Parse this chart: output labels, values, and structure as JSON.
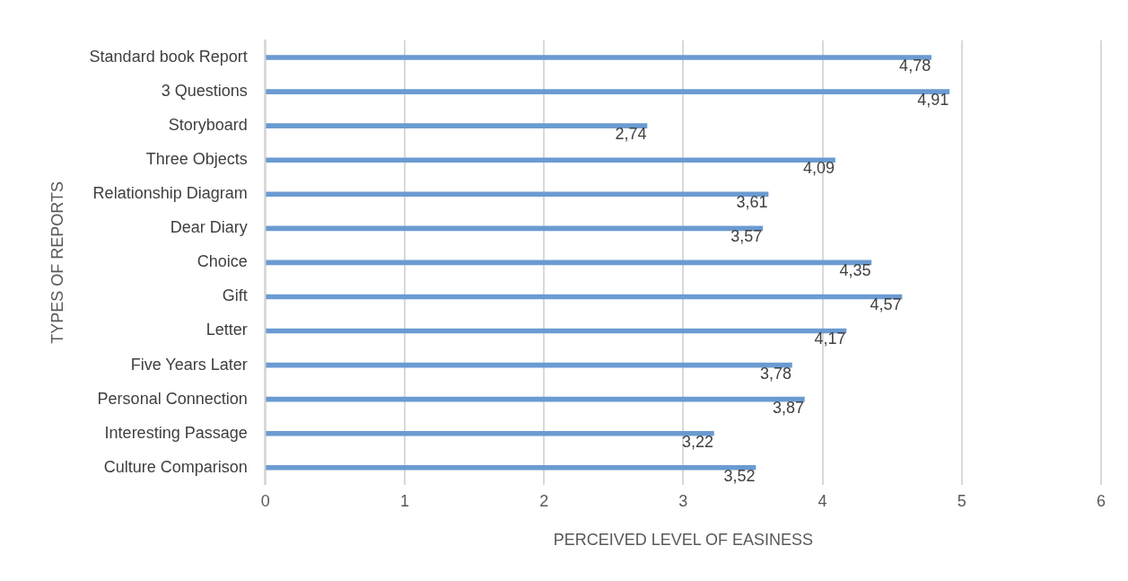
{
  "chart_data": {
    "type": "bar",
    "orientation": "horizontal",
    "xlabel": "PERCEIVED LEVEL OF EASINESS",
    "ylabel": "TYPES OF REPORTS",
    "categories": [
      "Standard book Report",
      "3 Questions",
      "Storyboard",
      "Three Objects",
      "Relationship Diagram",
      "Dear Diary",
      "Choice",
      "Gift",
      "Letter",
      "Five Years Later",
      "Personal Connection",
      "Interesting Passage",
      "Culture Comparison"
    ],
    "values": [
      4.78,
      4.91,
      2.74,
      4.09,
      3.61,
      3.57,
      4.35,
      4.57,
      4.17,
      3.78,
      3.87,
      3.22,
      3.52
    ],
    "value_labels": [
      "4,78",
      "4,91",
      "2,74",
      "4,09",
      "3,61",
      "3,57",
      "4,35",
      "4,57",
      "4,17",
      "3,78",
      "3,87",
      "3,22",
      "3,52"
    ],
    "color": "#6a9bd1",
    "xlim": [
      0,
      6
    ],
    "xticks": [
      0,
      1,
      2,
      3,
      4,
      5,
      6
    ],
    "grid": "x",
    "legend": false
  }
}
